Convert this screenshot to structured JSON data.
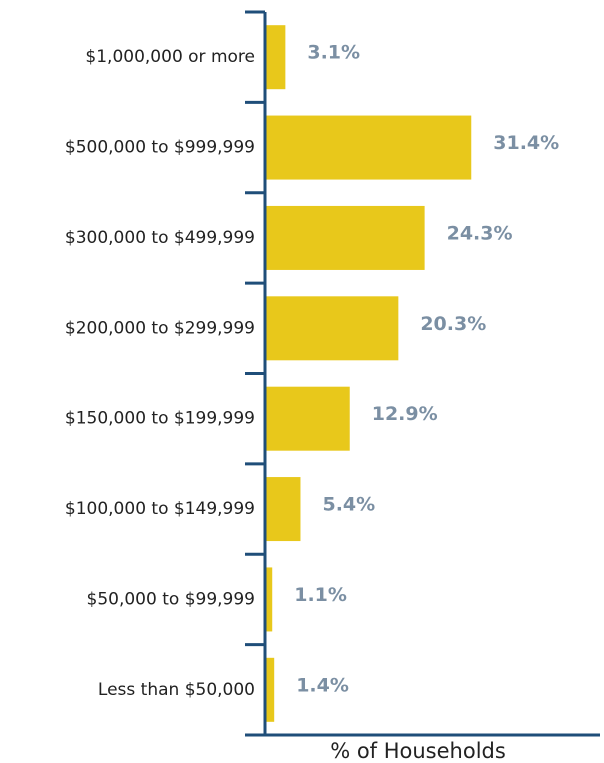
{
  "chart_data": {
    "type": "barh",
    "x_label": "% of Households",
    "categories": [
      "$1,000,000 or more",
      "$500,000 to $999,999",
      "$300,000 to $499,999",
      "$200,000 to $299,999",
      "$150,000 to $199,999",
      "$100,000 to $149,999",
      "$50,000 to $99,999",
      "Less than $50,000"
    ],
    "values": [
      3.1,
      31.4,
      24.3,
      20.3,
      12.9,
      5.4,
      1.1,
      1.4
    ],
    "value_labels": [
      "3.1%",
      "31.4%",
      "24.3%",
      "20.3%",
      "12.9%",
      "5.4%",
      "1.1%",
      "1.4%"
    ],
    "color": "#e8c81b",
    "axis_color": "#1f4e79",
    "label_color": "#7b8fa3",
    "xlim": [
      0,
      51
    ]
  }
}
